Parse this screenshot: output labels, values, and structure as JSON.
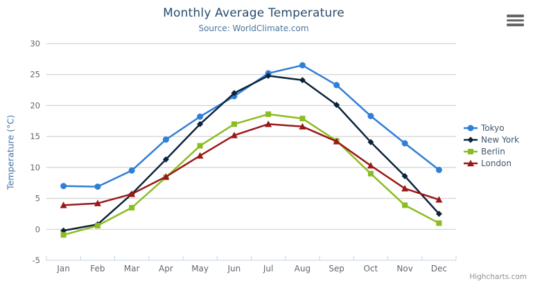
{
  "header": {
    "title": "Monthly Average Temperature",
    "subtitle": "Source: WorldClimate.com"
  },
  "credits": {
    "text": "Highcharts.com"
  },
  "icons": {
    "export_menu": "hamburger-menu-icon"
  },
  "colors": {
    "title": "#274b6d",
    "subtitle": "#4d759e",
    "axis_title": "#4572a7",
    "axis_labels": "#666666",
    "gridline": "#c8c8c8",
    "axis_line": "#c0d0e0",
    "legend_text": "#3e576f"
  },
  "chart_data": {
    "type": "line",
    "title": "Monthly Average Temperature",
    "subtitle": "Source: WorldClimate.com",
    "categories": [
      "Jan",
      "Feb",
      "Mar",
      "Apr",
      "May",
      "Jun",
      "Jul",
      "Aug",
      "Sep",
      "Oct",
      "Nov",
      "Dec"
    ],
    "series": [
      {
        "name": "Tokyo",
        "color": "#2f7ed8",
        "marker": "circle",
        "values": [
          7.0,
          6.9,
          9.5,
          14.5,
          18.2,
          21.5,
          25.2,
          26.5,
          23.3,
          18.3,
          13.9,
          9.6
        ]
      },
      {
        "name": "New York",
        "color": "#0d233a",
        "marker": "diamond",
        "values": [
          -0.2,
          0.8,
          5.7,
          11.3,
          17.0,
          22.0,
          24.8,
          24.1,
          20.1,
          14.1,
          8.6,
          2.5
        ]
      },
      {
        "name": "Berlin",
        "color": "#8bbc21",
        "marker": "square",
        "values": [
          -0.9,
          0.6,
          3.5,
          8.4,
          13.5,
          17.0,
          18.6,
          17.9,
          14.3,
          9.0,
          3.9,
          1.0
        ]
      },
      {
        "name": "London",
        "color": "#9c1717",
        "marker": "triangle",
        "values": [
          3.9,
          4.2,
          5.7,
          8.5,
          11.9,
          15.2,
          17.0,
          16.6,
          14.2,
          10.3,
          6.6,
          4.8
        ]
      }
    ],
    "xlabel": "",
    "ylabel": "Temperature (°C)",
    "yaxis": {
      "title": "Temperature (°C)",
      "min": -5,
      "max": 30,
      "tick_interval": 5,
      "ticks": [
        -5,
        0,
        5,
        10,
        15,
        20,
        25,
        30
      ]
    },
    "grid": true,
    "legend_position": "right"
  }
}
